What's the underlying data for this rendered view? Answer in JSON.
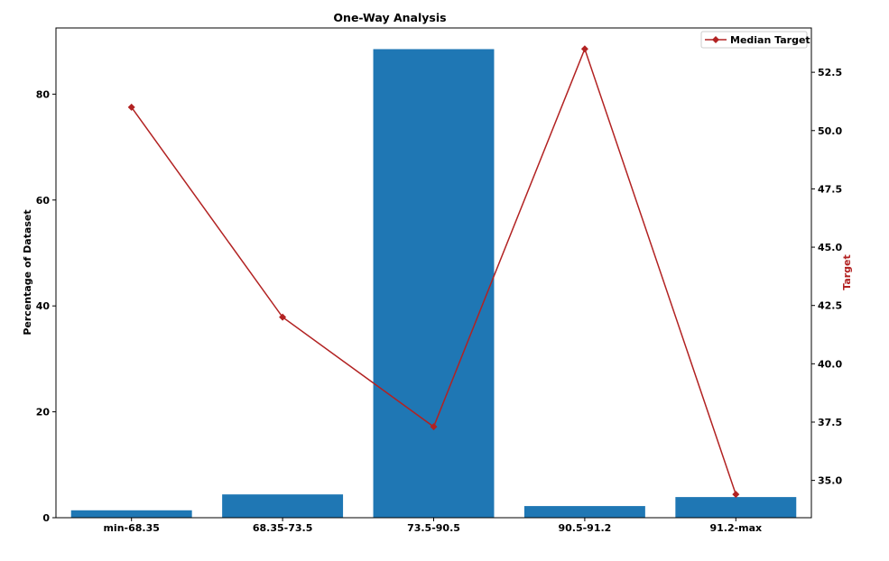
{
  "chart_data": {
    "type": "bar",
    "title": "One-Way Analysis",
    "categories": [
      "min-68.35",
      "68.35-73.5",
      "73.5-90.5",
      "90.5-91.2",
      "91.2-max"
    ],
    "bar_series": {
      "values": [
        1.4,
        4.4,
        88.5,
        2.2,
        3.9
      ],
      "color": "#1f77b4"
    },
    "line_series": {
      "name": "Median Target",
      "values": [
        51.0,
        42.0,
        37.3,
        53.5,
        34.4
      ],
      "color": "#b22222",
      "marker": "diamond"
    },
    "ylabel": "Percentage of Dataset",
    "ylabel_right": "Target",
    "ylabel_right_color": "#b22222",
    "ylim": [
      0,
      92.5
    ],
    "ylim_right": [
      33.4,
      54.4
    ],
    "yticks": [
      "0",
      "20",
      "40",
      "60",
      "80"
    ],
    "yticks_right": [
      "35.0",
      "37.5",
      "40.0",
      "42.5",
      "45.0",
      "47.5",
      "50.0",
      "52.5"
    ],
    "grid": false,
    "legend": {
      "position": "top-right",
      "entries": [
        "Median Target"
      ]
    }
  }
}
